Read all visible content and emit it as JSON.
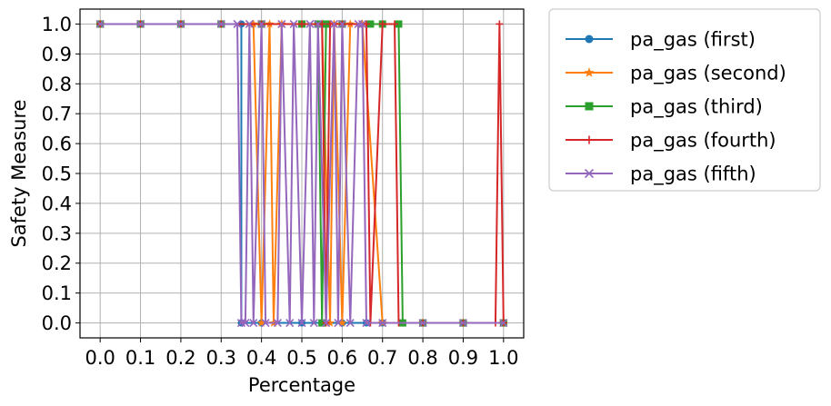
{
  "chart_data": {
    "type": "line",
    "title": "",
    "xlabel": "Percentage",
    "ylabel": "Safety Measure",
    "xlim": [
      -0.05,
      1.05
    ],
    "ylim": [
      -0.05,
      1.05
    ],
    "xticks": [
      0.0,
      0.1,
      0.2,
      0.3,
      0.4,
      0.5,
      0.6,
      0.7,
      0.8,
      0.9,
      1.0
    ],
    "xtick_labels": [
      "0.0",
      "0.1",
      "0.2",
      "0.3",
      "0.4",
      "0.5",
      "0.6",
      "0.7",
      "0.8",
      "0.9",
      "1.0"
    ],
    "yticks": [
      0.0,
      0.1,
      0.2,
      0.3,
      0.4,
      0.5,
      0.6,
      0.7,
      0.8,
      0.9,
      1.0
    ],
    "ytick_labels": [
      "0.0",
      "0.1",
      "0.2",
      "0.3",
      "0.4",
      "0.5",
      "0.6",
      "0.7",
      "0.8",
      "0.9",
      "1.0"
    ],
    "grid": true,
    "legend_position": "outside-right",
    "series": [
      {
        "name": "pa_gas (first)",
        "color": "#1f77b4",
        "marker": "circle",
        "points": [
          [
            0.0,
            1
          ],
          [
            0.1,
            1
          ],
          [
            0.2,
            1
          ],
          [
            0.3,
            1
          ],
          [
            0.35,
            1
          ],
          [
            0.35,
            0
          ],
          [
            0.4,
            0
          ],
          [
            0.5,
            0
          ],
          [
            0.6,
            0
          ],
          [
            0.66,
            0
          ],
          [
            0.7,
            0
          ],
          [
            0.8,
            0
          ],
          [
            0.9,
            0
          ],
          [
            1.0,
            0
          ]
        ]
      },
      {
        "name": "pa_gas (second)",
        "color": "#ff7f0e",
        "marker": "star",
        "points": [
          [
            0.0,
            1
          ],
          [
            0.1,
            1
          ],
          [
            0.2,
            1
          ],
          [
            0.3,
            1
          ],
          [
            0.38,
            1
          ],
          [
            0.4,
            0
          ],
          [
            0.42,
            1
          ],
          [
            0.43,
            0
          ],
          [
            0.45,
            1
          ],
          [
            0.5,
            1
          ],
          [
            0.55,
            1
          ],
          [
            0.57,
            0
          ],
          [
            0.58,
            1
          ],
          [
            0.6,
            0
          ],
          [
            0.62,
            1
          ],
          [
            0.65,
            1
          ],
          [
            0.7,
            0
          ],
          [
            0.8,
            0
          ],
          [
            0.9,
            0
          ],
          [
            1.0,
            0
          ]
        ]
      },
      {
        "name": "pa_gas (third)",
        "color": "#2ca02c",
        "marker": "square",
        "points": [
          [
            0.0,
            1
          ],
          [
            0.1,
            1
          ],
          [
            0.2,
            1
          ],
          [
            0.3,
            1
          ],
          [
            0.4,
            1
          ],
          [
            0.5,
            1
          ],
          [
            0.54,
            1
          ],
          [
            0.55,
            0
          ],
          [
            0.56,
            1
          ],
          [
            0.6,
            1
          ],
          [
            0.67,
            1
          ],
          [
            0.7,
            1
          ],
          [
            0.74,
            1
          ],
          [
            0.75,
            0
          ],
          [
            0.8,
            0
          ],
          [
            0.9,
            0
          ],
          [
            1.0,
            0
          ]
        ]
      },
      {
        "name": "pa_gas (fourth)",
        "color": "#d62728",
        "marker": "plus",
        "points": [
          [
            0.0,
            1
          ],
          [
            0.1,
            1
          ],
          [
            0.2,
            1
          ],
          [
            0.3,
            1
          ],
          [
            0.4,
            1
          ],
          [
            0.5,
            1
          ],
          [
            0.55,
            1
          ],
          [
            0.56,
            0
          ],
          [
            0.57,
            1
          ],
          [
            0.6,
            1
          ],
          [
            0.66,
            1
          ],
          [
            0.67,
            0
          ],
          [
            0.7,
            1
          ],
          [
            0.73,
            1
          ],
          [
            0.74,
            0
          ],
          [
            0.8,
            0
          ],
          [
            0.9,
            0
          ],
          [
            0.98,
            0
          ],
          [
            0.99,
            1
          ],
          [
            1.0,
            0
          ]
        ]
      },
      {
        "name": "pa_gas (fifth)",
        "color": "#9467bd",
        "marker": "x",
        "points": [
          [
            0.0,
            1
          ],
          [
            0.1,
            1
          ],
          [
            0.2,
            1
          ],
          [
            0.3,
            1
          ],
          [
            0.34,
            1
          ],
          [
            0.35,
            0
          ],
          [
            0.36,
            0
          ],
          [
            0.37,
            1
          ],
          [
            0.38,
            0
          ],
          [
            0.4,
            1
          ],
          [
            0.41,
            0
          ],
          [
            0.44,
            0
          ],
          [
            0.45,
            1
          ],
          [
            0.47,
            0
          ],
          [
            0.48,
            1
          ],
          [
            0.5,
            0
          ],
          [
            0.52,
            1
          ],
          [
            0.53,
            0
          ],
          [
            0.54,
            1
          ],
          [
            0.56,
            0
          ],
          [
            0.58,
            1
          ],
          [
            0.59,
            0
          ],
          [
            0.6,
            1
          ],
          [
            0.62,
            0
          ],
          [
            0.64,
            1
          ],
          [
            0.65,
            1
          ],
          [
            0.66,
            0
          ],
          [
            0.7,
            0
          ],
          [
            0.8,
            0
          ],
          [
            0.9,
            0
          ],
          [
            1.0,
            0
          ]
        ]
      }
    ]
  }
}
